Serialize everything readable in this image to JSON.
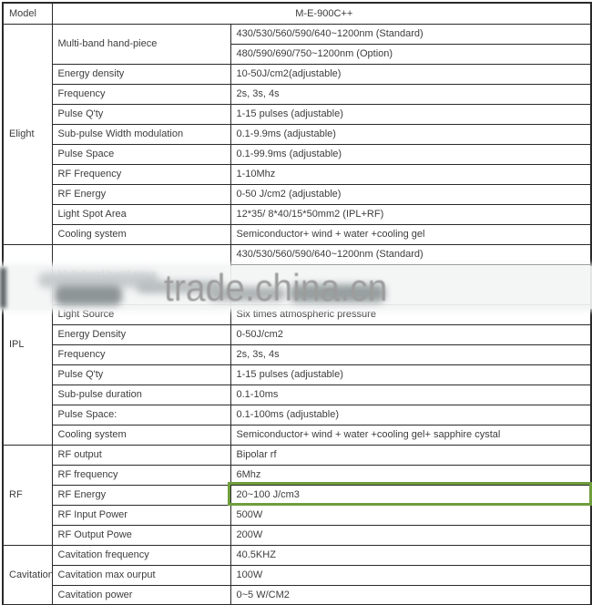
{
  "model_row": {
    "label": "Model",
    "value": "M-E-900C++"
  },
  "elight": {
    "label": "Elight",
    "handpiece": {
      "param": "Multi-band hand-piece",
      "standard": "430/530/560/590/640~1200nm (Standard)",
      "option": "480/590/690/750~1200nm (Option)"
    },
    "rows": [
      {
        "param": "Energy density",
        "value": "10-50J/cm2(adjustable)"
      },
      {
        "param": "Frequency",
        "value": "2s, 3s, 4s"
      },
      {
        "param": "Pulse Q'ty",
        "value": "1-15 pulses (adjustable)"
      },
      {
        "param": "Sub-pulse Width modulation",
        "value": "0.1-9.9ms (adjustable)"
      },
      {
        "param": "Pulse Space",
        "value": "0.1-99.9ms (adjustable)"
      },
      {
        "param": "RF Frequency",
        "value": "1-10Mhz"
      },
      {
        "param": "RF Energy",
        "value": "0-50 J/cm2 (adjustable)"
      },
      {
        "param": "Light Spot Area",
        "value": "12*35/ 8*40/15*50mm2 (IPL+RF)"
      },
      {
        "param": "Cooling system",
        "value": "Semiconductor+ wind + water +cooling gel"
      }
    ]
  },
  "ipl": {
    "label": "IPL",
    "handpiece": {
      "param": "Multi-band hand-piece",
      "standard": "430/530/560/590/640~1200nm (Standard)",
      "obscured_value": ""
    },
    "rows": [
      {
        "param": "Light Source",
        "value": "Six times atmospheric pressure"
      },
      {
        "param": "Energy Density",
        "value": "0-50J/cm2"
      },
      {
        "param": "Frequency",
        "value": "2s, 3s, 4s"
      },
      {
        "param": "Pulse Q'ty",
        "value": "1-15 pulses (adjustable)"
      },
      {
        "param": "Sub-pulse duration",
        "value": "0.1-10ms"
      },
      {
        "param": "Pulse Space:",
        "value": "0.1-100ms (adjustable)"
      },
      {
        "param": "Cooling system",
        "value": "Semiconductor+ wind + water +cooling gel+ sapphire cystal"
      }
    ]
  },
  "rf": {
    "label": "RF",
    "rows": [
      {
        "param": "RF output",
        "value": "Bipolar rf"
      },
      {
        "param": "RF frequency",
        "value": "6Mhz"
      },
      {
        "param": "RF Energy",
        "value": "20~100 J/cm3",
        "highlighted": true
      },
      {
        "param": "RF Input Power",
        "value": "500W"
      },
      {
        "param": "RF Output Powe",
        "value": "200W"
      }
    ]
  },
  "cavitation": {
    "label": "Cavitation",
    "rows": [
      {
        "param": "Cavitation frequency",
        "value": "40.5KHZ"
      },
      {
        "param": "Cavitation max ourput",
        "value": "100W"
      },
      {
        "param": "Cavitation power",
        "value": "0~5 W/CM2"
      }
    ]
  },
  "watermark": {
    "text": "trade.china.cn"
  },
  "colors": {
    "highlight_border": "#6f9e3d",
    "table_border": "#2a2a2a",
    "text": "#3c3c3c",
    "watermark_text": "#9c9c9c"
  }
}
